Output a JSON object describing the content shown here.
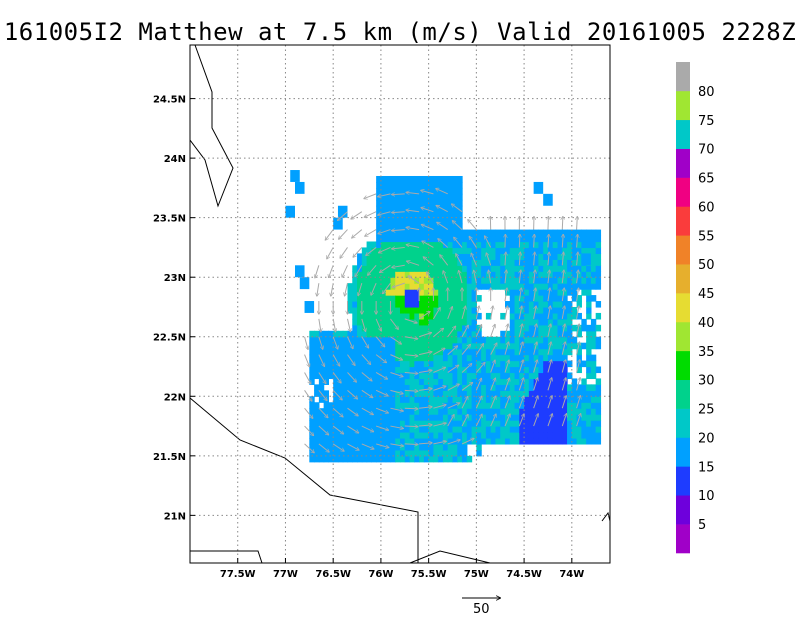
{
  "title": "161005I2 Matthew at 7.5 km (m/s) Valid 20161005 2228Z",
  "chart_data": {
    "type": "heatmap",
    "title": "161005I2 Matthew at 7.5 km (m/s) Valid 20161005 2228Z",
    "x_axis": {
      "ticks": [
        -77.5,
        -77,
        -76.5,
        -76,
        -75.5,
        -75,
        -74.5,
        -74
      ],
      "tick_labels": [
        "77.5W",
        "77W",
        "76.5W",
        "76W",
        "75.5W",
        "75W",
        "74.5W",
        "74W"
      ],
      "range": [
        -78.0,
        -73.6
      ]
    },
    "y_axis": {
      "ticks": [
        21,
        21.5,
        22,
        22.5,
        23,
        23.5,
        24,
        24.5
      ],
      "tick_labels": [
        "21N",
        "21.5N",
        "22N",
        "22.5N",
        "23N",
        "23.5N",
        "24N",
        "24.5N"
      ],
      "range": [
        20.6,
        24.95
      ]
    },
    "grid": true,
    "colorbar": {
      "labels": [
        "5",
        "10",
        "15",
        "20",
        "25",
        "30",
        "35",
        "40",
        "45",
        "50",
        "55",
        "60",
        "65",
        "70",
        "75",
        "80"
      ],
      "colors": [
        "#a000c8",
        "#6e00dc",
        "#1e3cff",
        "#00a0ff",
        "#00c8c8",
        "#00d28c",
        "#00dc00",
        "#a0e632",
        "#e6dc32",
        "#e6af2d",
        "#f08228",
        "#fa3c3c",
        "#f00082",
        "#a000c8",
        "#00c8c8",
        "#a0e632",
        "#aaaaaa"
      ]
    },
    "reference_vector": {
      "label": "50"
    },
    "storm_center": {
      "lon": -75.7,
      "lat": 22.8
    },
    "wind_field": [
      {
        "lon": -75.65,
        "lat": 23.05,
        "speed": 42
      },
      {
        "lon": -75.45,
        "lat": 22.95,
        "speed": 36
      },
      {
        "lon": -75.7,
        "lat": 22.8,
        "speed": 12
      },
      {
        "lon": -75.3,
        "lat": 22.7,
        "speed": 30
      },
      {
        "lon": -75.6,
        "lat": 23.2,
        "speed": 28
      },
      {
        "lon": -76.0,
        "lat": 22.6,
        "speed": 23
      },
      {
        "lon": -74.3,
        "lat": 21.9,
        "speed": 12
      },
      {
        "lon": -74.7,
        "lat": 22.9,
        "speed": 19
      },
      {
        "lon": -76.4,
        "lat": 22.0,
        "speed": 16
      }
    ]
  }
}
